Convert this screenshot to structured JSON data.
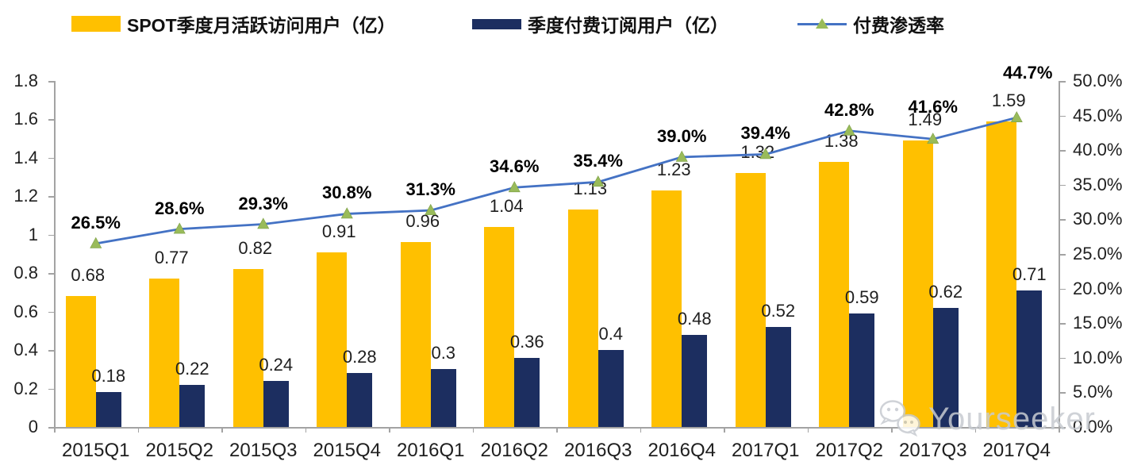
{
  "legend": {
    "items": [
      {
        "label": "SPOT季度月活跃访问用户（亿）",
        "color": "#FFC000",
        "type": "bar"
      },
      {
        "label": "季度付费订阅用户（亿）",
        "color": "#1C2E60",
        "type": "bar"
      },
      {
        "label": "付费渗透率",
        "color": "#4472C4",
        "marker_color": "#99BB5A",
        "type": "line"
      }
    ]
  },
  "chart_data": {
    "type": "combo-bar-line",
    "categories": [
      "2015Q1",
      "2015Q2",
      "2015Q3",
      "2015Q4",
      "2016Q1",
      "2016Q2",
      "2016Q3",
      "2016Q4",
      "2017Q1",
      "2017Q2",
      "2017Q3",
      "2017Q4"
    ],
    "series": [
      {
        "name": "SPOT季度月活跃访问用户（亿）",
        "type": "bar",
        "axis": "left",
        "color": "#FFC000",
        "values": [
          0.68,
          0.77,
          0.82,
          0.91,
          0.96,
          1.04,
          1.13,
          1.23,
          1.32,
          1.38,
          1.49,
          1.59
        ],
        "labels": [
          "0.68",
          "0.77",
          "0.82",
          "0.91",
          "0.96",
          "1.04",
          "1.13",
          "1.23",
          "1.32",
          "1.38",
          "1.49",
          "1.59"
        ]
      },
      {
        "name": "季度付费订阅用户（亿）",
        "type": "bar",
        "axis": "left",
        "color": "#1C2E60",
        "values": [
          0.18,
          0.22,
          0.24,
          0.28,
          0.3,
          0.36,
          0.4,
          0.48,
          0.52,
          0.59,
          0.62,
          0.71
        ],
        "labels": [
          "0.18",
          "0.22",
          "0.24",
          "0.28",
          "0.3",
          "0.36",
          "0.4",
          "0.48",
          "0.52",
          "0.59",
          "0.62",
          "0.71"
        ]
      },
      {
        "name": "付费渗透率",
        "type": "line",
        "axis": "right",
        "color": "#4472C4",
        "marker": "triangle",
        "marker_color": "#99BB5A",
        "values": [
          26.5,
          28.6,
          29.3,
          30.8,
          31.3,
          34.6,
          35.4,
          39.0,
          39.4,
          42.8,
          41.6,
          44.7
        ],
        "labels": [
          "26.5%",
          "28.6%",
          "29.3%",
          "30.8%",
          "31.3%",
          "34.6%",
          "35.4%",
          "39.0%",
          "39.4%",
          "42.8%",
          "41.6%",
          "44.7%"
        ]
      }
    ],
    "left_axis": {
      "min": 0,
      "max": 1.8,
      "ticks": [
        {
          "label": "1.8",
          "value": 1.8
        },
        {
          "label": "1.6",
          "value": 1.6
        },
        {
          "label": "1.4",
          "value": 1.4
        },
        {
          "label": "1.2",
          "value": 1.2
        },
        {
          "label": "1",
          "value": 1
        },
        {
          "label": "0.8",
          "value": 0.8
        },
        {
          "label": "0.6",
          "value": 0.6
        },
        {
          "label": "0.4",
          "value": 0.4
        },
        {
          "label": "0.2",
          "value": 0.2
        },
        {
          "label": "0",
          "value": 0
        }
      ]
    },
    "right_axis": {
      "min": 0,
      "max": 50,
      "ticks": [
        {
          "label": "50.0%",
          "value": 50
        },
        {
          "label": "45.0%",
          "value": 45
        },
        {
          "label": "40.0%",
          "value": 40
        },
        {
          "label": "35.0%",
          "value": 35
        },
        {
          "label": "30.0%",
          "value": 30
        },
        {
          "label": "25.0%",
          "value": 25
        },
        {
          "label": "20.0%",
          "value": 20
        },
        {
          "label": "15.0%",
          "value": 15
        },
        {
          "label": "10.0%",
          "value": 10
        },
        {
          "label": "5.0%",
          "value": 5
        },
        {
          "label": "0.0%",
          "value": 0
        }
      ]
    },
    "grid": false,
    "legend_position": "top",
    "background": "#FFFFFF"
  },
  "watermark": {
    "text": "Yourseeker",
    "icon": "wechat-icon"
  }
}
